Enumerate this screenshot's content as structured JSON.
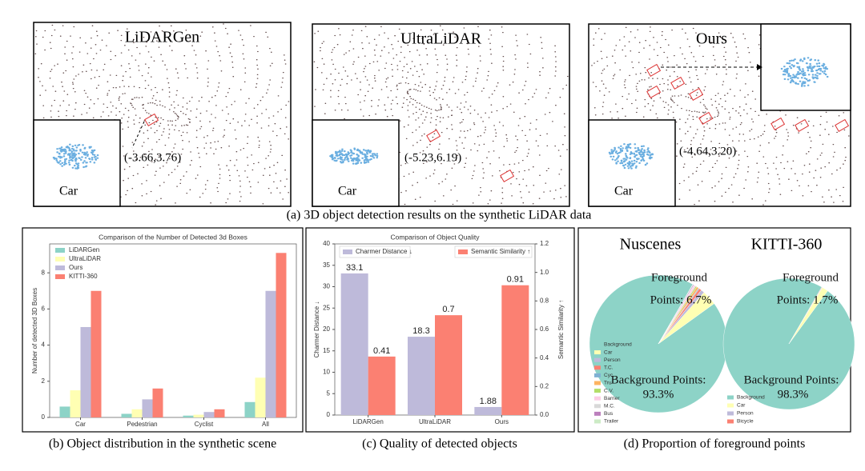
{
  "panel_a": {
    "images": [
      {
        "title": "LiDARGen",
        "inset_label": "Car",
        "coordinate": "(-3.66,3.76)"
      },
      {
        "title": "UltraLiDAR",
        "inset_label": "Car",
        "coordinate": "(-5.23,6.19)"
      },
      {
        "title": "Ours",
        "inset_label": "Car",
        "coordinate": "(-4.64,3.20)"
      }
    ],
    "caption": "(a) 3D object detection results on the synthetic LiDAR data"
  },
  "captions": {
    "b": "(b) Object distribution in the synthetic scene",
    "c": "(c) Quality of detected objects",
    "d": "(d) Proportion of foreground points"
  },
  "chart_data": [
    {
      "type": "bar",
      "title": "Comparison of the Number of Detected 3d Boxes",
      "y_label": "Number of detected 3D Boxes",
      "categories": [
        "Car",
        "Pedestrian",
        "Cyclist",
        "All"
      ],
      "series": [
        {
          "name": "LiDARGen",
          "color": "#8dd3c7",
          "values": [
            0.6,
            0.2,
            0.1,
            0.85
          ]
        },
        {
          "name": "UltraLiDAR",
          "color": "#ffffb3",
          "values": [
            1.5,
            0.45,
            0.15,
            2.2
          ]
        },
        {
          "name": "Ours",
          "color": "#bebada",
          "values": [
            5,
            1.0,
            0.3,
            7
          ]
        },
        {
          "name": "KITTI-360",
          "color": "#fb8072",
          "values": [
            7,
            1.6,
            0.45,
            9.1
          ]
        }
      ],
      "ylim": [
        0,
        9.6
      ],
      "yticks": [
        0,
        2,
        4,
        6,
        8
      ],
      "legend": "upper left"
    },
    {
      "type": "bar",
      "title": "Comparison of Object Quality",
      "y_label": "Charmer Distance ↓",
      "y2_label": "Semantic Similarity ↑",
      "categories": [
        "LiDARGen",
        "UltraLiDAR",
        "Ours"
      ],
      "series": [
        {
          "name": "Charmer Distance ↓",
          "color": "#bebada",
          "values": [
            33.1,
            18.3,
            1.88
          ]
        },
        {
          "name": "Semantic Similarity ↑",
          "color": "#fb8072",
          "axis": "y2",
          "values": [
            0.41,
            0.7,
            0.91
          ]
        }
      ],
      "ylim": [
        0,
        40
      ],
      "yticks": [
        0,
        5,
        10,
        15,
        20,
        25,
        30,
        35,
        40
      ],
      "y2lim": [
        0,
        1.2
      ],
      "y2ticks": [
        {
          "value": 0,
          "label": "0.0"
        },
        0.2,
        0.4,
        0.6,
        0.8,
        {
          "value": 1,
          "label": "1.0"
        },
        1.2
      ]
    },
    {
      "type": "pie",
      "title": "Nuscenes",
      "categories": [
        "Background",
        "Car",
        "Person",
        "T.C.",
        "Cyc",
        "Tru",
        "C.V.",
        "Barrier",
        "M.C.",
        "Bus",
        "Trailer"
      ],
      "values": [
        93.3,
        3.5,
        0.8,
        0.6,
        0.2,
        0.5,
        0.3,
        0.4,
        0.1,
        0.2,
        0.1
      ],
      "colors": [
        "#8dd3c7",
        "#ffffb3",
        "#bebada",
        "#fb8072",
        "#80b1d3",
        "#fdb462",
        "#b3de69",
        "#fccde5",
        "#d9d9d9",
        "#bc80bd",
        "#ccebc5"
      ],
      "annotations": [
        "Foreground",
        "Points: 6.7%",
        "Background Points:",
        "93.3%"
      ],
      "legend": "lower left"
    },
    {
      "type": "pie",
      "title": "KITTI-360",
      "categories": [
        "Background",
        "Car",
        "Person",
        "Bicycle"
      ],
      "values": [
        98.3,
        1.5,
        0.1,
        0.1
      ],
      "colors": [
        "#8dd3c7",
        "#ffffb3",
        "#bebada",
        "#fb8072"
      ],
      "annotations": [
        "Foreground",
        "Points: 1.7%",
        "Background Points:",
        "98.3%"
      ],
      "legend": "lower center"
    }
  ]
}
